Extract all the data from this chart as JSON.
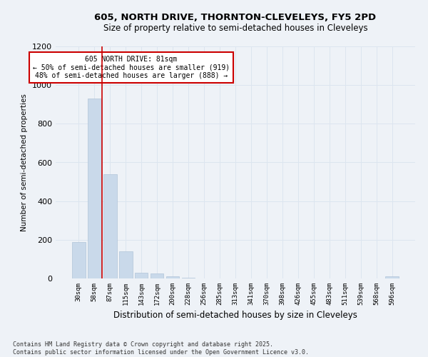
{
  "title1": "605, NORTH DRIVE, THORNTON-CLEVELEYS, FY5 2PD",
  "title2": "Size of property relative to semi-detached houses in Cleveleys",
  "xlabel": "Distribution of semi-detached houses by size in Cleveleys",
  "ylabel": "Number of semi-detached properties",
  "categories": [
    "30sqm",
    "58sqm",
    "87sqm",
    "115sqm",
    "143sqm",
    "172sqm",
    "200sqm",
    "228sqm",
    "256sqm",
    "285sqm",
    "313sqm",
    "341sqm",
    "370sqm",
    "398sqm",
    "426sqm",
    "455sqm",
    "483sqm",
    "511sqm",
    "539sqm",
    "568sqm",
    "596sqm"
  ],
  "values": [
    190,
    930,
    540,
    140,
    30,
    25,
    10,
    5,
    0,
    0,
    0,
    0,
    0,
    0,
    0,
    0,
    0,
    0,
    0,
    0,
    10
  ],
  "bar_color": "#c9d9ea",
  "bar_edge_color": "#b0c4d8",
  "grid_color": "#dce5ef",
  "background_color": "#eef2f7",
  "vline_x": 1.5,
  "vline_color": "#cc0000",
  "annotation_text": "605 NORTH DRIVE: 81sqm\n← 50% of semi-detached houses are smaller (919)\n48% of semi-detached houses are larger (888) →",
  "annotation_box_color": "#ffffff",
  "annotation_box_edge": "#cc0000",
  "ylim": [
    0,
    1200
  ],
  "yticks": [
    0,
    200,
    400,
    600,
    800,
    1000,
    1200
  ],
  "footer": "Contains HM Land Registry data © Crown copyright and database right 2025.\nContains public sector information licensed under the Open Government Licence v3.0."
}
